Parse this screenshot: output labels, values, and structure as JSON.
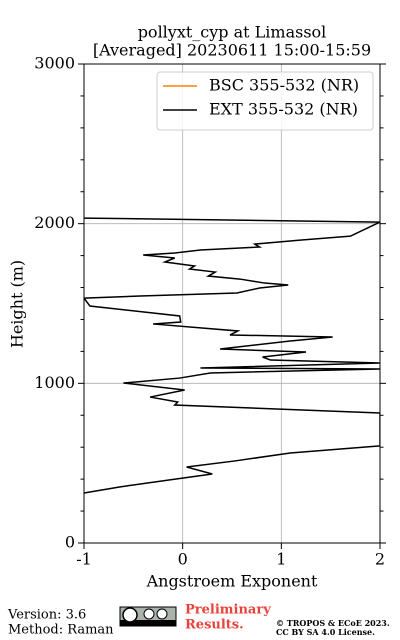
{
  "chart_data": {
    "type": "line",
    "title": "pollyxt_cyp at Limassol",
    "subtitle": "[Averaged] 20230611 15:00-15:59",
    "xlabel": "Angstroem Exponent",
    "ylabel": "Height (m)",
    "xlim": [
      -1,
      2
    ],
    "ylim": [
      0,
      3000
    ],
    "xticks": [
      -1,
      0,
      1,
      2
    ],
    "yticks": [
      0,
      1000,
      2000,
      3000
    ],
    "yminorticks": [
      200,
      400,
      600,
      800,
      1200,
      1400,
      1600,
      1800,
      2200,
      2400,
      2600,
      2800
    ],
    "grid": true,
    "legend": "upper right",
    "series": [
      {
        "name": "BSC 355-532 (NR)",
        "color": "#ff7f0e",
        "x": [],
        "y": []
      },
      {
        "name": "EXT 355-532 (NR)",
        "color": "#000000",
        "x": [
          -1.0,
          2.0,
          1.7,
          1.19,
          0.73,
          0.78,
          0.18,
          -0.08,
          -0.4,
          -0.08,
          -0.18,
          0.12,
          0.07,
          0.33,
          0.26,
          0.58,
          0.83,
          1.07,
          0.78,
          0.55,
          -0.43,
          -1.0,
          -0.94,
          -0.03,
          -0.02,
          -0.3,
          0.18,
          0.56,
          0.48,
          1.52,
          1.09,
          0.38,
          1.25,
          0.81,
          0.89,
          2.0,
          0.18,
          2.0,
          0.28,
          -0.03,
          -0.6,
          0.02,
          -0.33,
          -0.05,
          -0.08,
          2.0,
          2.0,
          1.09,
          0.53,
          0.04,
          0.3,
          -0.13,
          -0.64,
          -1.0
        ],
        "y": [
          2035,
          2010,
          1922,
          1897,
          1872,
          1854,
          1835,
          1816,
          1804,
          1785,
          1760,
          1735,
          1716,
          1697,
          1672,
          1653,
          1628,
          1616,
          1597,
          1566,
          1547,
          1534,
          1484,
          1422,
          1384,
          1372,
          1347,
          1328,
          1303,
          1290,
          1265,
          1215,
          1196,
          1165,
          1146,
          1127,
          1096,
          1090,
          1065,
          1033,
          1002,
          958,
          914,
          883,
          864,
          814,
          608,
          564,
          514,
          476,
          432,
          395,
          351,
          313
        ]
      }
    ]
  },
  "footer": {
    "version": "Version: 3.6",
    "method": "Method: Raman",
    "preliminary": "Preliminary",
    "results": "Results.",
    "copyright": "© TROPOS & ECoE 2023.",
    "license": "CC BY SA 4.0 License."
  }
}
